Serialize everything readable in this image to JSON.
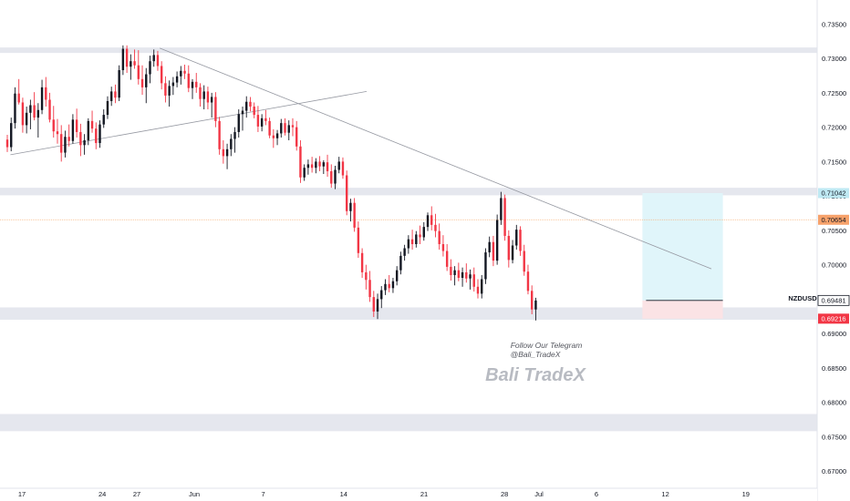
{
  "chart_data": {
    "type": "candlestick",
    "symbol": "NZDUSD",
    "ylim": [
      0.6675,
      0.7385
    ],
    "x_tick_labels": [
      "17",
      "24",
      "27",
      "Jun",
      "7",
      "14",
      "21",
      "28",
      "Jul",
      "6",
      "12",
      "19"
    ],
    "y_tick_labels": [
      "0.73500",
      "0.73000",
      "0.72500",
      "0.72000",
      "0.71500",
      "0.71000",
      "0.70500",
      "0.70000",
      "0.69500",
      "0.69000",
      "0.68500",
      "0.68000",
      "0.67500",
      "0.67000"
    ],
    "y_tick_values": [
      0.735,
      0.73,
      0.725,
      0.72,
      0.715,
      0.71,
      0.705,
      0.7,
      0.695,
      0.69,
      0.685,
      0.68,
      0.675,
      0.67
    ],
    "x_ticks": [
      {
        "label": "17",
        "day": 0
      },
      {
        "label": "24",
        "day": 7
      },
      {
        "label": "27",
        "day": 10
      },
      {
        "label": "Jun",
        "day": 15
      },
      {
        "label": "7",
        "day": 21
      },
      {
        "label": "14",
        "day": 28
      },
      {
        "label": "21",
        "day": 35
      },
      {
        "label": "28",
        "day": 42
      },
      {
        "label": "Jul",
        "day": 45
      },
      {
        "label": "6",
        "day": 50
      },
      {
        "label": "12",
        "day": 56
      },
      {
        "label": "19",
        "day": 63
      }
    ],
    "price_labels": {
      "current": "0.69481",
      "target": "0.71042",
      "entry": "0.70654",
      "stop": "0.69216"
    },
    "levels": {
      "current": 0.69481,
      "target": 0.71042,
      "entry": 0.70654,
      "stop": 0.69216
    },
    "zones": [
      {
        "from": 0.7308,
        "to": 0.7316
      },
      {
        "from": 0.7101,
        "to": 0.7112
      },
      {
        "from": 0.692,
        "to": 0.6938
      },
      {
        "from": 0.6758,
        "to": 0.6783
      }
    ],
    "trendlines": [
      {
        "from": {
          "day": -1,
          "price": 0.716
        },
        "to": {
          "day": 30,
          "price": 0.7252
        }
      },
      {
        "from": {
          "day": 12,
          "price": 0.7315
        },
        "to": {
          "day": 60,
          "price": 0.6994
        }
      }
    ],
    "position": {
      "start_day": 54,
      "end_day": 61,
      "target": 0.71042,
      "entry": 0.69481,
      "stop": 0.69216
    },
    "candles": [
      [
        0.7182,
        0.7189,
        0.7164,
        0.7171
      ],
      [
        0.7171,
        0.7214,
        0.7165,
        0.7206
      ],
      [
        0.7206,
        0.7258,
        0.7198,
        0.7249
      ],
      [
        0.7249,
        0.727,
        0.7233,
        0.7236
      ],
      [
        0.7236,
        0.7243,
        0.7192,
        0.7203
      ],
      [
        0.7203,
        0.723,
        0.7191,
        0.7221
      ],
      [
        0.7221,
        0.724,
        0.7197,
        0.7232
      ],
      [
        0.7232,
        0.7251,
        0.721,
        0.7214
      ],
      [
        0.7214,
        0.7235,
        0.7185,
        0.7225
      ],
      [
        0.7225,
        0.7269,
        0.7219,
        0.7258
      ],
      [
        0.7258,
        0.7273,
        0.723,
        0.724
      ],
      [
        0.724,
        0.725,
        0.7207,
        0.7211
      ],
      [
        0.7211,
        0.7231,
        0.7185,
        0.7194
      ],
      [
        0.7194,
        0.7212,
        0.7176,
        0.719
      ],
      [
        0.719,
        0.7203,
        0.715,
        0.7163
      ],
      [
        0.7163,
        0.7195,
        0.7156,
        0.7186
      ],
      [
        0.7186,
        0.7204,
        0.7172,
        0.718
      ],
      [
        0.718,
        0.7219,
        0.7176,
        0.7211
      ],
      [
        0.7211,
        0.7227,
        0.7185,
        0.7193
      ],
      [
        0.7193,
        0.7205,
        0.7158,
        0.7174
      ],
      [
        0.7174,
        0.719,
        0.716,
        0.7181
      ],
      [
        0.7181,
        0.7213,
        0.7174,
        0.7209
      ],
      [
        0.7209,
        0.7224,
        0.7192,
        0.7198
      ],
      [
        0.7198,
        0.7207,
        0.7168,
        0.7177
      ],
      [
        0.7177,
        0.721,
        0.717,
        0.7204
      ],
      [
        0.7204,
        0.7226,
        0.7199,
        0.7218
      ],
      [
        0.7218,
        0.7245,
        0.7212,
        0.7238
      ],
      [
        0.7238,
        0.7259,
        0.7231,
        0.7252
      ],
      [
        0.7252,
        0.7262,
        0.7235,
        0.7243
      ],
      [
        0.7243,
        0.729,
        0.7238,
        0.7283
      ],
      [
        0.7283,
        0.7319,
        0.7276,
        0.7314
      ],
      [
        0.7314,
        0.7319,
        0.7279,
        0.7288
      ],
      [
        0.7288,
        0.7306,
        0.7269,
        0.7296
      ],
      [
        0.7296,
        0.7313,
        0.7285,
        0.729
      ],
      [
        0.729,
        0.7312,
        0.7262,
        0.727
      ],
      [
        0.727,
        0.729,
        0.7247,
        0.7258
      ],
      [
        0.7258,
        0.7286,
        0.7235,
        0.7277
      ],
      [
        0.7277,
        0.7304,
        0.7264,
        0.7296
      ],
      [
        0.7296,
        0.7313,
        0.7288,
        0.7305
      ],
      [
        0.7305,
        0.7311,
        0.7282,
        0.7289
      ],
      [
        0.7289,
        0.7296,
        0.7255,
        0.7264
      ],
      [
        0.7264,
        0.7274,
        0.7236,
        0.7246
      ],
      [
        0.7246,
        0.7268,
        0.723,
        0.726
      ],
      [
        0.726,
        0.7273,
        0.7247,
        0.7265
      ],
      [
        0.7265,
        0.7281,
        0.7258,
        0.7274
      ],
      [
        0.7274,
        0.7289,
        0.7262,
        0.7282
      ],
      [
        0.7282,
        0.7291,
        0.727,
        0.7278
      ],
      [
        0.7278,
        0.729,
        0.7251,
        0.7257
      ],
      [
        0.7257,
        0.727,
        0.7241,
        0.7266
      ],
      [
        0.7266,
        0.7279,
        0.725,
        0.7258
      ],
      [
        0.7258,
        0.7264,
        0.723,
        0.7241
      ],
      [
        0.7241,
        0.7261,
        0.7226,
        0.7252
      ],
      [
        0.7252,
        0.7259,
        0.7226,
        0.7236
      ],
      [
        0.7236,
        0.725,
        0.7214,
        0.7244
      ],
      [
        0.7244,
        0.7251,
        0.72,
        0.7209
      ],
      [
        0.7209,
        0.7215,
        0.716,
        0.7168
      ],
      [
        0.7168,
        0.7181,
        0.7147,
        0.7158
      ],
      [
        0.7158,
        0.7176,
        0.7139,
        0.7168
      ],
      [
        0.7168,
        0.719,
        0.7158,
        0.7183
      ],
      [
        0.7183,
        0.72,
        0.7163,
        0.7193
      ],
      [
        0.7193,
        0.7226,
        0.7185,
        0.7219
      ],
      [
        0.7219,
        0.723,
        0.7195,
        0.7224
      ],
      [
        0.7224,
        0.7245,
        0.7214,
        0.7237
      ],
      [
        0.7237,
        0.7244,
        0.7223,
        0.723
      ],
      [
        0.723,
        0.7236,
        0.7213,
        0.7218
      ],
      [
        0.7218,
        0.7231,
        0.7193,
        0.7201
      ],
      [
        0.7201,
        0.7219,
        0.7194,
        0.7213
      ],
      [
        0.7213,
        0.7225,
        0.7203,
        0.7209
      ],
      [
        0.7209,
        0.7214,
        0.7184,
        0.7188
      ],
      [
        0.7188,
        0.7197,
        0.717,
        0.7184
      ],
      [
        0.7184,
        0.7196,
        0.7174,
        0.7191
      ],
      [
        0.7191,
        0.7212,
        0.7185,
        0.7206
      ],
      [
        0.7206,
        0.7213,
        0.7188,
        0.7192
      ],
      [
        0.7192,
        0.721,
        0.7181,
        0.7203
      ],
      [
        0.7203,
        0.7213,
        0.7187,
        0.72
      ],
      [
        0.72,
        0.7209,
        0.7166,
        0.7172
      ],
      [
        0.7172,
        0.7181,
        0.7119,
        0.7127
      ],
      [
        0.7127,
        0.7146,
        0.7122,
        0.7141
      ],
      [
        0.7141,
        0.7153,
        0.7131,
        0.7146
      ],
      [
        0.7146,
        0.7157,
        0.7134,
        0.7141
      ],
      [
        0.7141,
        0.7155,
        0.7133,
        0.715
      ],
      [
        0.715,
        0.7158,
        0.7136,
        0.7143
      ],
      [
        0.7143,
        0.7152,
        0.7132,
        0.7149
      ],
      [
        0.7149,
        0.716,
        0.7128,
        0.7136
      ],
      [
        0.7136,
        0.7146,
        0.7112,
        0.7118
      ],
      [
        0.7118,
        0.7144,
        0.711,
        0.7138
      ],
      [
        0.7138,
        0.7157,
        0.7133,
        0.715
      ],
      [
        0.715,
        0.7156,
        0.7125,
        0.713
      ],
      [
        0.713,
        0.7137,
        0.7072,
        0.7078
      ],
      [
        0.7078,
        0.7096,
        0.7063,
        0.709
      ],
      [
        0.709,
        0.7097,
        0.7048,
        0.7054
      ],
      [
        0.7054,
        0.7063,
        0.701,
        0.7017
      ],
      [
        0.7017,
        0.7024,
        0.6981,
        0.6989
      ],
      [
        0.6989,
        0.7,
        0.6964,
        0.6978
      ],
      [
        0.6978,
        0.6991,
        0.6946,
        0.6953
      ],
      [
        0.6953,
        0.6962,
        0.6924,
        0.6932
      ],
      [
        0.6932,
        0.6958,
        0.6921,
        0.695
      ],
      [
        0.695,
        0.6969,
        0.6937,
        0.6963
      ],
      [
        0.6963,
        0.6979,
        0.6956,
        0.6972
      ],
      [
        0.6972,
        0.6985,
        0.696,
        0.6966
      ],
      [
        0.6966,
        0.6981,
        0.6959,
        0.6976
      ],
      [
        0.6976,
        0.6998,
        0.697,
        0.6992
      ],
      [
        0.6992,
        0.7019,
        0.6986,
        0.7013
      ],
      [
        0.7013,
        0.7029,
        0.7006,
        0.7024
      ],
      [
        0.7024,
        0.7043,
        0.7016,
        0.7037
      ],
      [
        0.7037,
        0.7051,
        0.7022,
        0.703
      ],
      [
        0.703,
        0.7049,
        0.7025,
        0.7044
      ],
      [
        0.7044,
        0.7057,
        0.703,
        0.704
      ],
      [
        0.704,
        0.7062,
        0.7035,
        0.7055
      ],
      [
        0.7055,
        0.7076,
        0.7049,
        0.7072
      ],
      [
        0.7072,
        0.7085,
        0.705,
        0.7058
      ],
      [
        0.7058,
        0.7074,
        0.704,
        0.7049
      ],
      [
        0.7049,
        0.706,
        0.7022,
        0.703
      ],
      [
        0.703,
        0.7043,
        0.7012,
        0.702
      ],
      [
        0.702,
        0.703,
        0.6991,
        0.6997
      ],
      [
        0.6997,
        0.7008,
        0.6977,
        0.6985
      ],
      [
        0.6985,
        0.6998,
        0.697,
        0.6992
      ],
      [
        0.6992,
        0.7003,
        0.6976,
        0.6981
      ],
      [
        0.6981,
        0.6996,
        0.6968,
        0.6989
      ],
      [
        0.6989,
        0.7002,
        0.6974,
        0.698
      ],
      [
        0.698,
        0.6993,
        0.6964,
        0.6986
      ],
      [
        0.6986,
        0.6996,
        0.6961,
        0.6968
      ],
      [
        0.6968,
        0.6979,
        0.6951,
        0.6958
      ],
      [
        0.6958,
        0.6985,
        0.6951,
        0.6979
      ],
      [
        0.6979,
        0.7024,
        0.6972,
        0.7018
      ],
      [
        0.7018,
        0.7041,
        0.7011,
        0.7033
      ],
      [
        0.7033,
        0.7042,
        0.6998,
        0.7006
      ],
      [
        0.7006,
        0.7073,
        0.7,
        0.7065
      ],
      [
        0.7065,
        0.7106,
        0.7058,
        0.7097
      ],
      [
        0.7097,
        0.7102,
        0.7035,
        0.7042
      ],
      [
        0.7042,
        0.705,
        0.6996,
        0.7007
      ],
      [
        0.7007,
        0.7036,
        0.7002,
        0.7028
      ],
      [
        0.7028,
        0.7058,
        0.7022,
        0.7051
      ],
      [
        0.7051,
        0.7056,
        0.7013,
        0.702
      ],
      [
        0.702,
        0.7029,
        0.6984,
        0.699
      ],
      [
        0.699,
        0.7,
        0.6957,
        0.6962
      ],
      [
        0.6962,
        0.697,
        0.6928,
        0.6935
      ],
      [
        0.6935,
        0.6952,
        0.6919,
        0.6948
      ]
    ]
  },
  "watermark": {
    "line1": "Follow Our Telegram",
    "line2": "@Bali_TradeX",
    "brand": "Bali TradeX"
  },
  "colors": {
    "up": "#131722",
    "down": "#f23645",
    "zone": "#e5e7ee",
    "trendline": "#9598a1",
    "target_fill": "#e0f5fa",
    "stop_fill": "#fbe3e5",
    "entry_line": "#f8b27a"
  }
}
